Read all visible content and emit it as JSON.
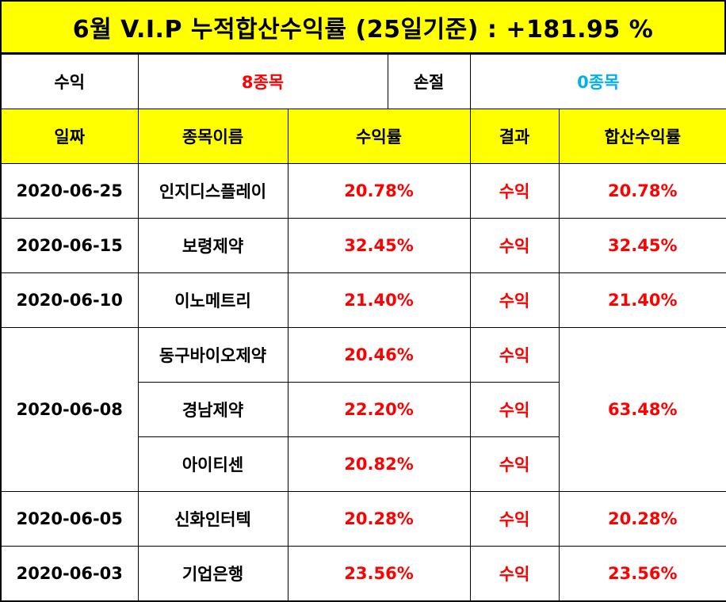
{
  "title": "6월 V.I.P 누적합산수익률 (25일기준) : +181.95 %",
  "summary": {
    "profit_label": "수익",
    "profit_value": "8종목",
    "loss_label": "손절",
    "loss_value": "0종목"
  },
  "headers": {
    "date": "일짜",
    "name": "종목이름",
    "rate": "수익률",
    "result": "결과",
    "total": "합산수익률"
  },
  "rows": [
    {
      "date": "2020-06-25",
      "name": "인지디스플레이",
      "rate": "20.78%",
      "result": "수익",
      "total": "20.78%"
    },
    {
      "date": "2020-06-15",
      "name": "보령제약",
      "rate": "32.45%",
      "result": "수익",
      "total": "32.45%"
    },
    {
      "date": "2020-06-10",
      "name": "이노메트리",
      "rate": "21.40%",
      "result": "수익",
      "total": "21.40%"
    },
    {
      "date": "2020-06-08",
      "name": "동구바이오제약",
      "rate": "20.46%",
      "result": "수익",
      "total": "63.48%"
    },
    {
      "date": "",
      "name": "경남제약",
      "rate": "22.20%",
      "result": "수익",
      "total": ""
    },
    {
      "date": "",
      "name": "아이티센",
      "rate": "20.82%",
      "result": "수익",
      "total": ""
    },
    {
      "date": "2020-06-05",
      "name": "신화인터텍",
      "rate": "20.28%",
      "result": "수익",
      "total": "20.28%"
    },
    {
      "date": "2020-06-03",
      "name": "기업은행",
      "rate": "23.56%",
      "result": "수익",
      "total": "23.56%"
    }
  ],
  "colors": {
    "highlight": "#ffff00",
    "profit": "#ff0000",
    "loss": "#00b0f0"
  }
}
